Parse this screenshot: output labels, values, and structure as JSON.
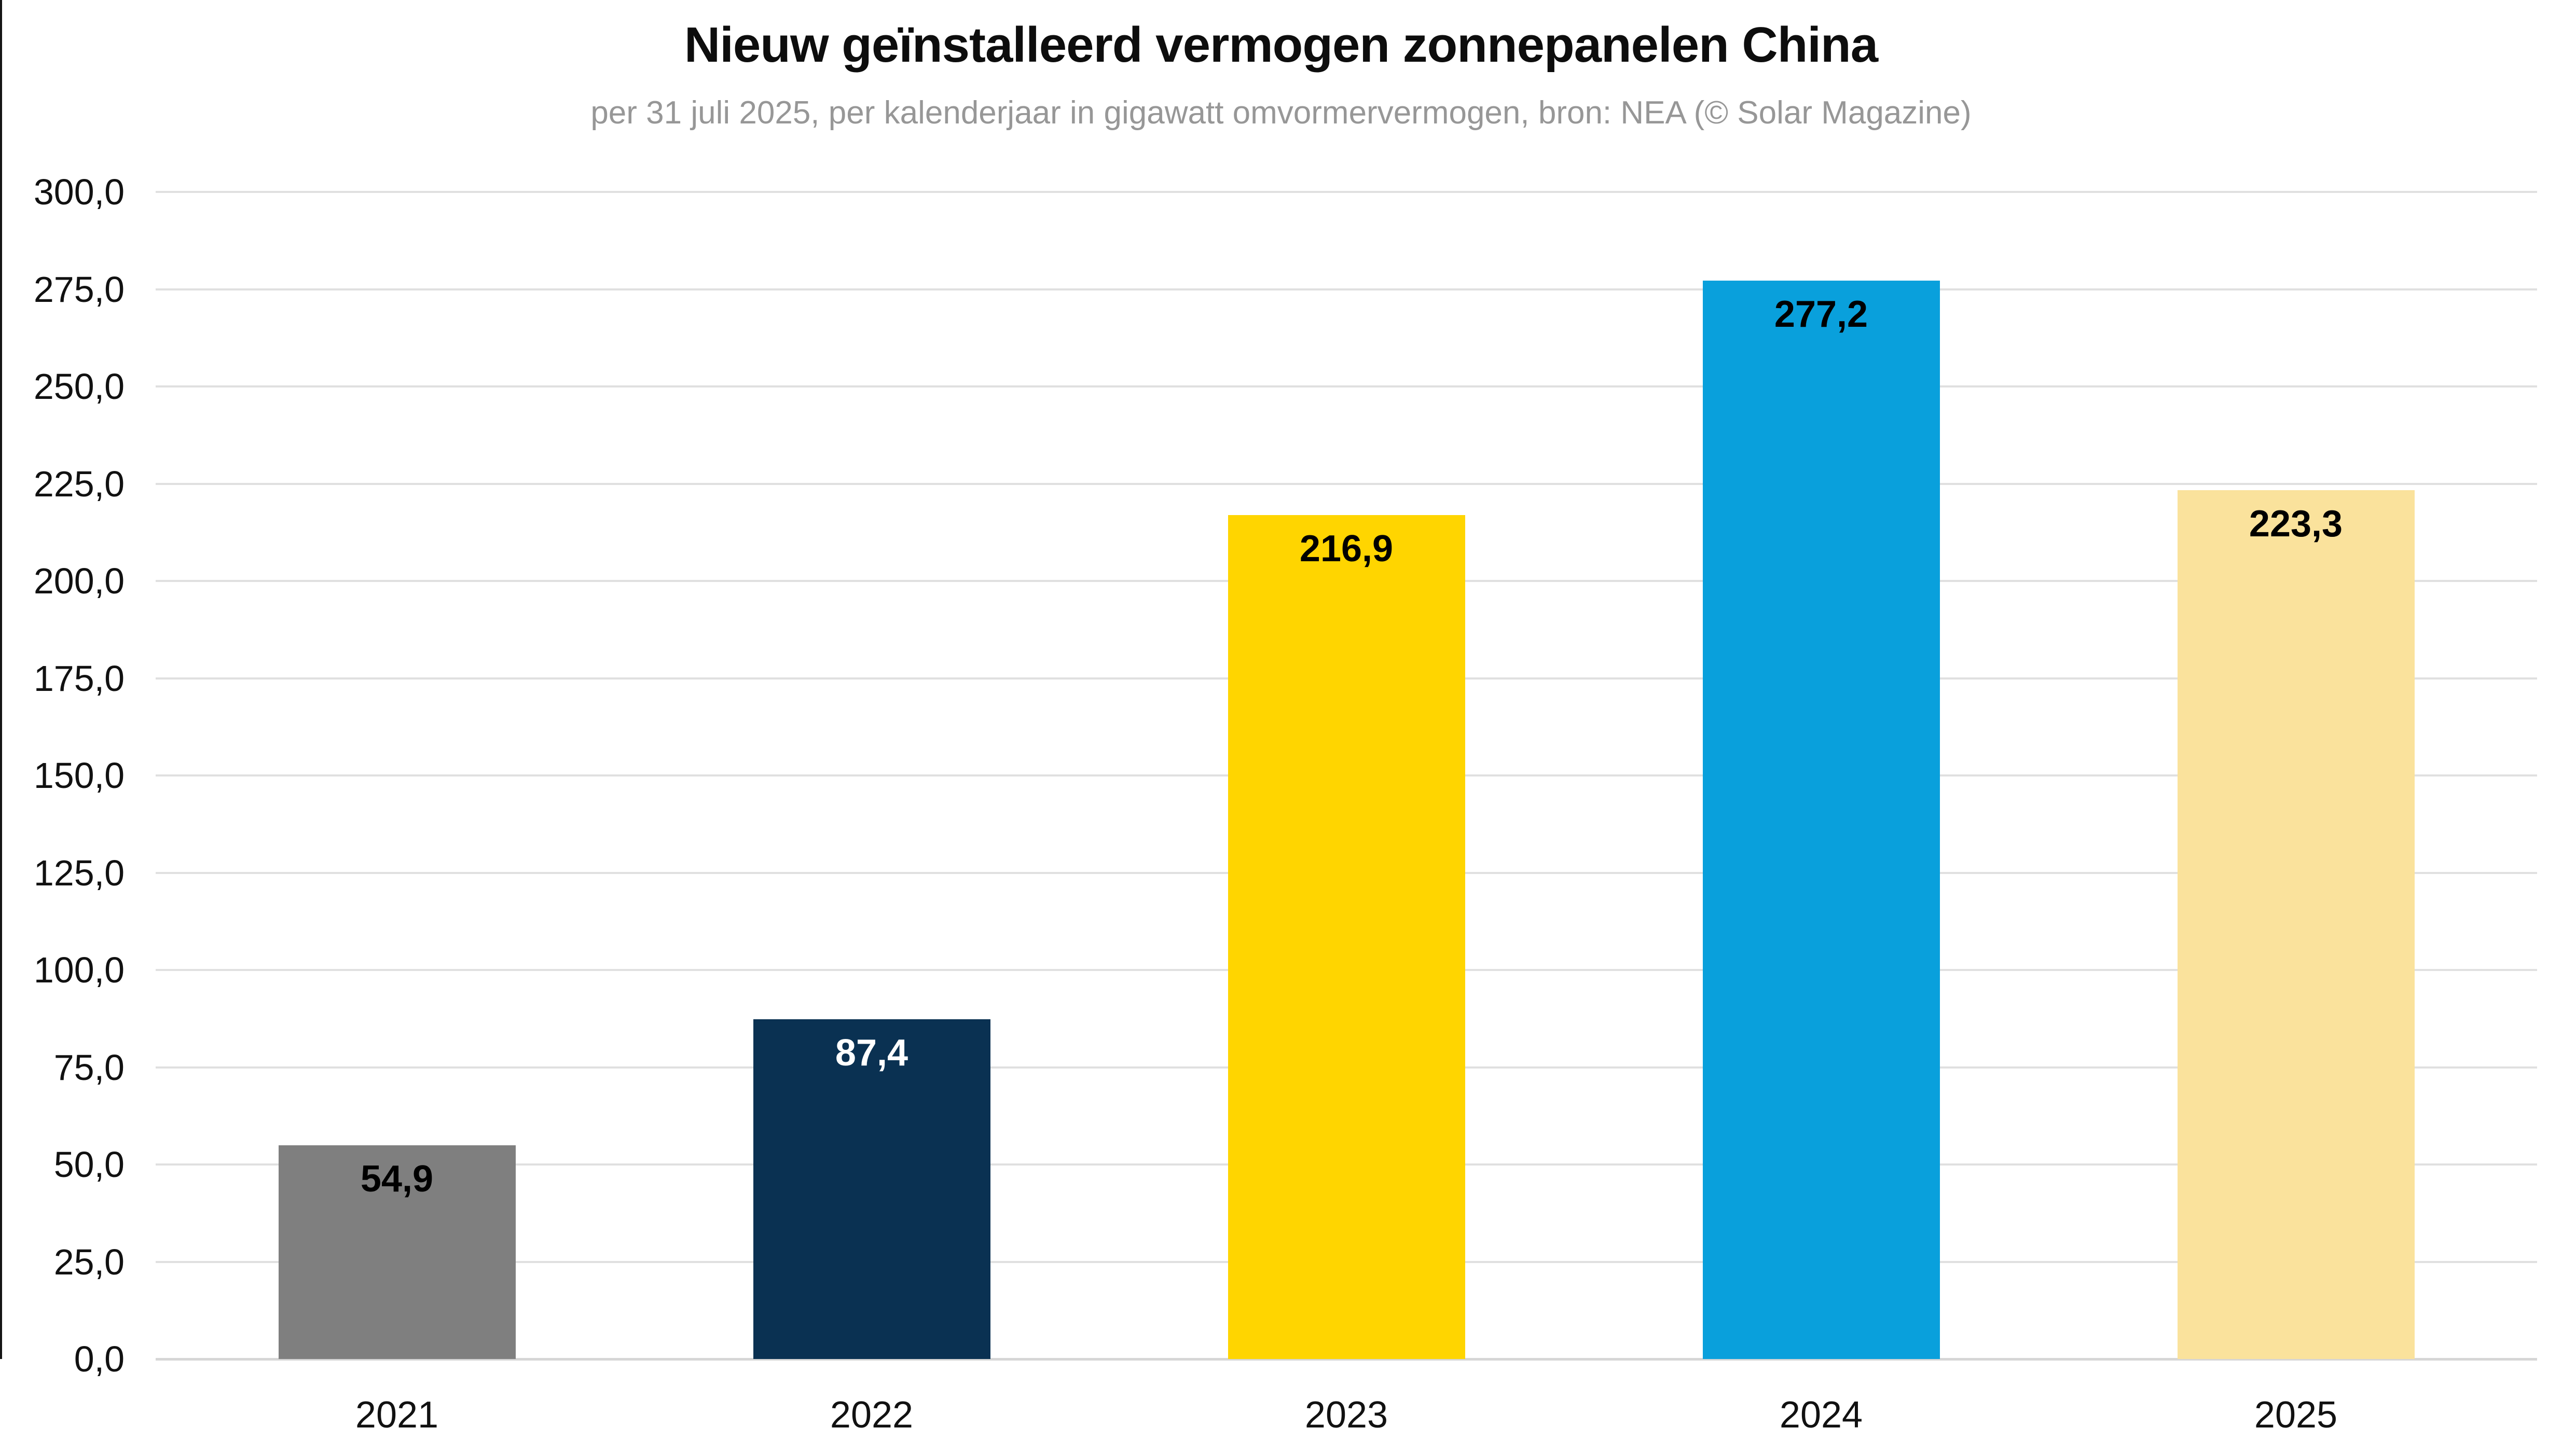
{
  "chart_data": {
    "type": "bar",
    "title": "Nieuw geïnstalleerd vermogen zonnepanelen China",
    "subtitle": "per 31 juli 2025, per kalenderjaar in gigawatt omvormervermogen, bron: NEA (© Solar Magazine)",
    "categories": [
      "2021",
      "2022",
      "2023",
      "2024",
      "2025"
    ],
    "values": [
      54.9,
      87.4,
      216.9,
      277.2,
      223.3
    ],
    "value_labels": [
      "54,9",
      "87,4",
      "216,9",
      "277,2",
      "223,3"
    ],
    "bar_colors": [
      "#7F7F7F",
      "#0A3152",
      "#FFD500",
      "#09A0DC",
      "#FAE29C"
    ],
    "value_label_colors": [
      "#000000",
      "#FFFFFF",
      "#000000",
      "#000000",
      "#000000"
    ],
    "xlabel": "",
    "ylabel": "",
    "ylim": [
      0,
      300
    ],
    "ytick_step": 25,
    "ytick_labels": [
      "0,0",
      "25,0",
      "50,0",
      "75,0",
      "100,0",
      "125,0",
      "150,0",
      "175,0",
      "200,0",
      "225,0",
      "250,0",
      "275,0",
      "300,0"
    ],
    "grid": true,
    "legend": false,
    "colors": {
      "title": "#0D0D0D",
      "subtitle": "#979797",
      "gridline": "#E0E0E0",
      "axis_baseline": "#D6D6D6",
      "background": "#FFFFFF",
      "left_edge_line": "#151515"
    }
  }
}
